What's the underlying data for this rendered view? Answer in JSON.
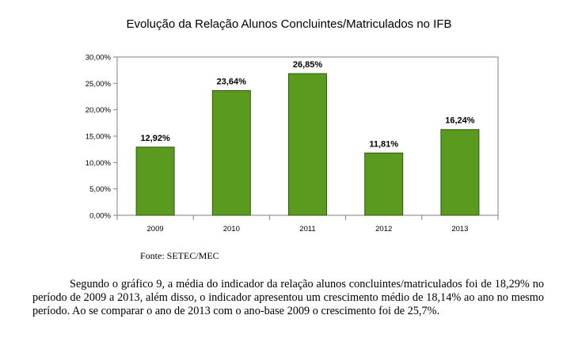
{
  "chart_data": {
    "type": "bar",
    "title": "Evolução da Relação Alunos Concluintes/Matriculados no IFB",
    "categories": [
      "2009",
      "2010",
      "2011",
      "2012",
      "2013"
    ],
    "values": [
      12.92,
      23.64,
      26.85,
      11.81,
      16.24
    ],
    "value_labels": [
      "12,92%",
      "23,64%",
      "26,85%",
      "11,81%",
      "16,24%"
    ],
    "y_ticks": [
      0,
      5,
      10,
      15,
      20,
      25,
      30
    ],
    "y_tick_labels": [
      "0,00%",
      "5,00%",
      "10,00%",
      "15,00%",
      "20,00%",
      "25,00%",
      "30,00%"
    ],
    "ylim": [
      0,
      30
    ],
    "xlabel": "",
    "ylabel": "",
    "grid": false,
    "bar_color": "#5a9a1e"
  },
  "source": "Fonte: SETEC/MEC",
  "paragraph": "Segundo o gráfico 9, a média do indicador da relação alunos concluintes/matriculados foi de 18,29% no período de 2009 a 2013, além disso, o indicador apresentou um crescimento médio de 18,14% ao ano no mesmo período. Ao se comparar o ano de 2013 com o ano-base 2009 o crescimento foi de 25,7%."
}
